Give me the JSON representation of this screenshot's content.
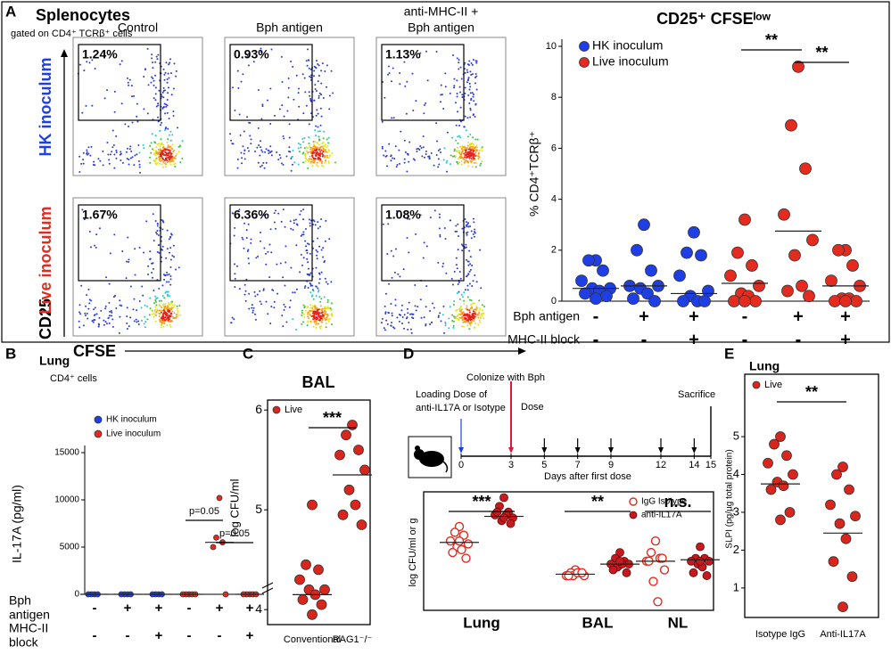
{
  "figure": {
    "panel_a": {
      "letter": "A",
      "title": "Splenocytes",
      "subtitle": "gated on CD4⁺ TCRβ⁺ cells",
      "columns": [
        [
          "Control"
        ],
        [
          "Bph antigen"
        ],
        [
          "anti-MHC-II +",
          "Bph antigen"
        ]
      ],
      "rows": [
        "HK inoculum",
        "Live inoculum"
      ],
      "gates": [
        [
          "1.24%",
          "0.93%",
          "1.13%"
        ],
        [
          "1.67%",
          "6.36%",
          "1.08%"
        ]
      ],
      "y_axis": "CD25",
      "x_axis": "CFSE"
    },
    "panel_d": {
      "letter": "D",
      "colonize": "Colonize with Bph",
      "loading": [
        "Loading Dose of",
        "anti-IL17A or Isotype"
      ],
      "dose": "Dose",
      "sacrifice": "Sacrifice",
      "days": [
        0,
        3,
        5,
        7,
        9,
        12,
        14,
        15
      ],
      "axis_label": "Days after first dose"
    }
  },
  "chart_data": [
    {
      "type": "strip",
      "title": "CD25⁺ CFSEˡᵒʷ",
      "ylabel": "% CD4⁺TCRβ⁺",
      "ylim": [
        0,
        10
      ],
      "yticks": [
        0,
        2,
        4,
        6,
        8,
        10
      ],
      "series": [
        {
          "name": "HK inoculum",
          "color": "#1f3fe6",
          "values": [
            [
              1.6,
              1.6,
              1.2,
              0.8,
              0.5,
              0.5,
              0.4,
              0.3,
              0.2,
              0.1
            ],
            [
              3.0,
              2.0,
              1.2,
              0.6,
              0.6,
              0.5,
              0.3,
              0.1,
              0.0
            ],
            [
              2.7,
              1.9,
              1.8,
              1.0,
              0.4,
              0.2,
              0.0,
              0.0,
              0.0
            ],
            null,
            null,
            null
          ],
          "means": [
            0.5,
            0.6,
            0.3,
            null,
            null,
            null
          ]
        },
        {
          "name": "Live inoculum",
          "color": "#e52a1f",
          "values": [
            null,
            null,
            null,
            [
              3.2,
              1.9,
              1.4,
              1.0,
              0.6,
              0.3,
              0.2,
              0.0,
              0.0,
              0.0
            ],
            [
              9.2,
              6.9,
              5.2,
              3.4,
              2.4,
              1.8,
              0.6,
              0.4,
              0.2
            ],
            [
              2.0,
              2.0,
              1.4,
              0.8,
              0.6,
              0.1,
              0.1,
              0.0,
              0.0,
              0.0
            ]
          ],
          "means": [
            null,
            null,
            null,
            0.7,
            2.75,
            0.6
          ]
        }
      ],
      "conditions": [
        {
          "name": [
            "Bph antigen"
          ],
          "signs": [
            "-",
            "+",
            "+",
            "-",
            "+",
            "+"
          ]
        },
        {
          "name": [
            "MHC-II block"
          ],
          "signs": [
            "-",
            "-",
            "+",
            "-",
            "-",
            "+"
          ]
        }
      ],
      "annotations": [
        {
          "text": "**",
          "between": [
            3,
            4
          ]
        },
        {
          "text": "**",
          "between": [
            4,
            5
          ]
        }
      ]
    },
    {
      "type": "strip",
      "panel": "B",
      "title": "Lung",
      "subtitle": "CD4⁺ cells",
      "ylabel": "IL-17A (pg/ml)",
      "ylim": [
        0,
        15000
      ],
      "yticks": [
        0,
        5000,
        10000,
        15000
      ],
      "series": [
        {
          "name": "HK inoculum",
          "color": "#1f3fe6",
          "values": [
            [
              0,
              0,
              0,
              0
            ],
            [
              0,
              0,
              0,
              0
            ],
            [
              0,
              0,
              0,
              0
            ],
            null,
            null,
            null
          ],
          "means": [
            0,
            0,
            0,
            null,
            null,
            null
          ]
        },
        {
          "name": "Live inoculum",
          "color": "#e52a1f",
          "values": [
            null,
            null,
            null,
            [
              0,
              0,
              0,
              0,
              0
            ],
            [
              10200,
              6000,
              5500,
              5000,
              0
            ],
            [
              0,
              0,
              0,
              0,
              0
            ]
          ],
          "means": [
            null,
            null,
            null,
            0,
            5500,
            0
          ]
        }
      ],
      "conditions": [
        {
          "name": [
            "Bph",
            "antigen"
          ],
          "signs": [
            "-",
            "+",
            "+",
            "-",
            "+",
            "+"
          ]
        },
        {
          "name": [
            "MHC-II",
            "block"
          ],
          "signs": [
            "-",
            "-",
            "+",
            "-",
            "-",
            "+"
          ]
        }
      ],
      "annotations": [
        {
          "text": "p=0.05",
          "between": [
            3,
            4
          ]
        },
        {
          "text": "p=0.05",
          "between": [
            4,
            5
          ]
        }
      ]
    },
    {
      "type": "strip",
      "panel": "C",
      "title": "BAL",
      "ylabel": "log CFU/ml",
      "ylim": [
        3.85,
        6.1
      ],
      "yticks": [
        4,
        5,
        6
      ],
      "categories": [
        "Conventional",
        "RAG1⁻/⁻"
      ],
      "series": [
        {
          "name": "Live",
          "color": "#d9251c",
          "values": [
            [
              5.05,
              4.45,
              4.4,
              4.3,
              4.2,
              4.2,
              4.15,
              4.1,
              4.05,
              3.95
            ],
            [
              5.85,
              5.75,
              5.6,
              5.55,
              5.4,
              5.2,
              5.05,
              4.95,
              4.85
            ]
          ],
          "means": [
            4.15,
            5.35
          ]
        }
      ],
      "annotations": [
        {
          "text": "***",
          "between": [
            0,
            1
          ]
        }
      ]
    },
    {
      "type": "strip",
      "ylabel": "log CFU/ml or g",
      "ylim": [
        3.2,
        7.3
      ],
      "categories": [
        "Lung",
        "BAL",
        "NL"
      ],
      "series": [
        {
          "name": "IgG Isotype",
          "color": "#e52a1f",
          "hollow": true,
          "values": [
            [
              6.1,
              5.9,
              5.8,
              5.6,
              5.5,
              5.4,
              5.3,
              5.2,
              5.0,
              5.6
            ],
            [
              4.6,
              4.5,
              4.5,
              4.4,
              4.4,
              4.4,
              4.5,
              4.4,
              4.5
            ],
            [
              5.6,
              5.2,
              5.0,
              4.9,
              4.6,
              4.2,
              3.5,
              4.9,
              5.0
            ]
          ],
          "means": [
            5.55,
            4.45,
            4.9
          ]
        },
        {
          "name": "anti-IL17A",
          "color": "#c8191e",
          "values": [
            [
              7.1,
              6.8,
              6.6,
              6.5,
              6.4,
              6.3,
              6.5,
              6.6,
              6.2,
              6.4
            ],
            [
              5.2,
              5.0,
              4.9,
              4.8,
              4.8,
              4.7,
              4.8,
              4.6,
              4.5,
              4.9
            ],
            [
              5.4,
              5.0,
              5.0,
              4.9,
              4.9,
              4.8,
              4.7,
              4.5,
              4.4,
              4.9
            ]
          ],
          "means": [
            6.45,
            4.8,
            4.95
          ]
        }
      ],
      "annotations": [
        {
          "text": "***",
          "category": 0
        },
        {
          "text": "**",
          "category": 1
        },
        {
          "text": "n.s.",
          "category": 2
        }
      ]
    },
    {
      "type": "strip",
      "panel": "E",
      "title": "Lung",
      "ylabel": "SLPI (pg/µg total protein)",
      "ylim": [
        0.22,
        6.65
      ],
      "yticks": [
        1,
        2,
        3,
        4,
        5
      ],
      "categories": [
        "Isotype IgG",
        "Anti-IL17A"
      ],
      "series": [
        {
          "name": "Live",
          "color": "#d9251c",
          "values": [
            [
              5.0,
              4.8,
              4.5,
              4.3,
              4.0,
              3.8,
              3.7,
              3.6,
              3.0,
              2.8
            ],
            [
              4.2,
              4.0,
              3.6,
              3.2,
              2.9,
              2.7,
              2.3,
              1.7,
              1.3,
              0.5
            ]
          ],
          "means": [
            3.75,
            2.45
          ]
        }
      ],
      "annotations": [
        {
          "text": "**",
          "between": [
            0,
            1
          ]
        }
      ]
    }
  ]
}
